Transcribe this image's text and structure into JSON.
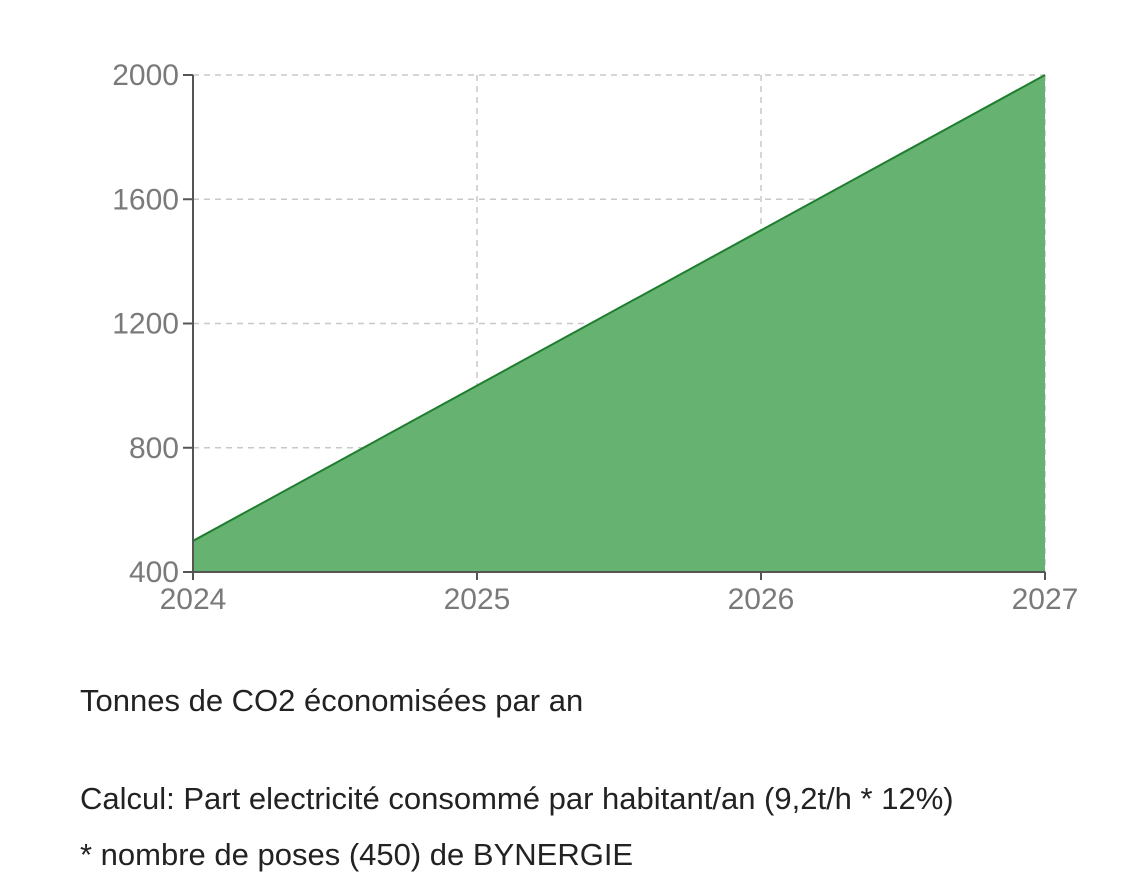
{
  "chart_data": {
    "type": "area",
    "x": [
      2024,
      2025,
      2026,
      2027
    ],
    "series": [
      {
        "values": [
          500,
          1000,
          1500,
          2000
        ],
        "color": "#66b371",
        "line_color": "#1e7d2e"
      }
    ],
    "x_ticks": [
      "2024",
      "2025",
      "2026",
      "2027"
    ],
    "y_ticks": [
      "400",
      "800",
      "1200",
      "1600",
      "2000"
    ],
    "xlim": [
      2024,
      2027
    ],
    "ylim": [
      400,
      2000
    ],
    "grid": true,
    "title": "",
    "xlabel": "",
    "ylabel": ""
  },
  "captions": {
    "title": "Tonnes de CO2 économisées par an",
    "calc_line1": "Calcul: Part electricité consommé par habitant/an (9,2t/h * 12%)",
    "calc_line2": "* nombre de poses (450) de BYNERGIE"
  }
}
